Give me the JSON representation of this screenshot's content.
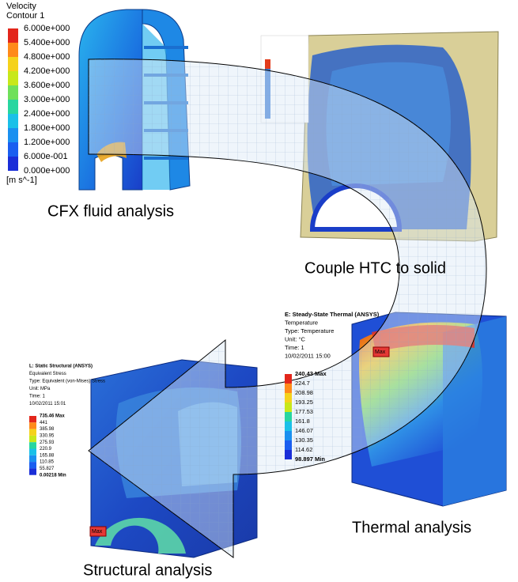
{
  "cfx": {
    "legend_title": [
      "Velocity",
      "Contour 1"
    ],
    "legend_values": [
      "6.000e+000",
      "5.400e+000",
      "4.800e+000",
      "4.200e+000",
      "3.600e+000",
      "3.000e+000",
      "2.400e+000",
      "1.800e+000",
      "1.200e+000",
      "6.000e-001",
      "0.000e+000"
    ],
    "unit": "[m s^-1]",
    "caption": "CFX fluid analysis"
  },
  "couple": {
    "caption": "Couple HTC to solid"
  },
  "thermal": {
    "header": [
      "E: Steady-State Thermal (ANSYS)",
      "Temperature",
      "Type: Temperature",
      "Unit: °C",
      "Time: 1",
      "10/02/2011 15:00"
    ],
    "legend_values": [
      "240.43 Max",
      "224.7",
      "208.98",
      "193.25",
      "177.53",
      "161.8",
      "146.07",
      "130.35",
      "114.62",
      "98.897 Min"
    ],
    "marker": "Max",
    "caption": "Thermal analysis"
  },
  "structural": {
    "header": [
      "L: Static Structural (ANSYS)",
      "Equivalent Stress",
      "Type: Equivalent (von-Mises) Stress",
      "Unit: MPa",
      "Time: 1",
      "10/02/2011 15:01"
    ],
    "legend_values": [
      "735.46 Max",
      "441",
      "385.98",
      "330.95",
      "275.93",
      "220.9",
      "165.88",
      "110.85",
      "55.827",
      "0.00218 Min"
    ],
    "marker": "Max",
    "caption": "Structural analysis"
  }
}
